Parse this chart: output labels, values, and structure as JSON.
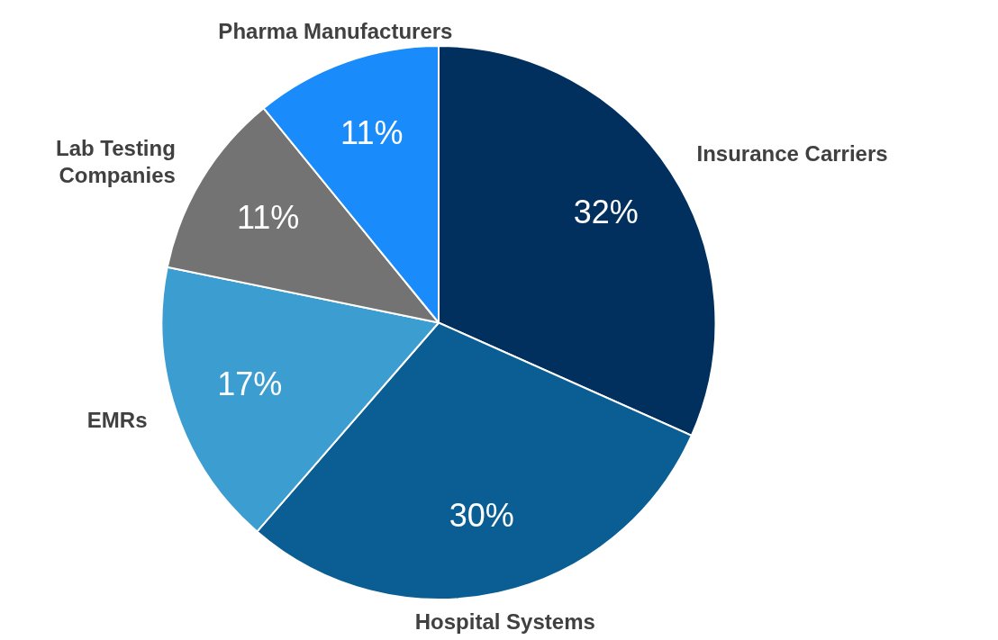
{
  "chart_data": {
    "type": "pie",
    "categories": [
      "Insurance Carriers",
      "Hospital Systems",
      "EMRs",
      "Lab Testing Companies",
      "Pharma Manufacturers"
    ],
    "values": [
      32,
      30,
      17,
      11,
      11
    ],
    "colors": [
      "#01305e",
      "#0a5e94",
      "#3c9dd0",
      "#737373",
      "#1a8bfa"
    ],
    "value_labels": [
      "32%",
      "30%",
      "17%",
      "11%",
      "11%"
    ]
  }
}
